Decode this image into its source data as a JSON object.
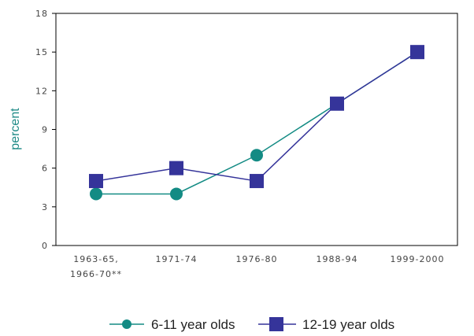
{
  "chart_data": {
    "type": "line",
    "title": "",
    "xlabel": "",
    "ylabel": "percent",
    "ylim": [
      0,
      18
    ],
    "yticks": [
      0,
      3,
      6,
      9,
      12,
      15,
      18
    ],
    "categories": [
      [
        "1963-65,",
        "1966-70**"
      ],
      [
        "1971-74"
      ],
      [
        "1976-80"
      ],
      [
        "1988-94"
      ],
      [
        "1999-2000"
      ]
    ],
    "series": [
      {
        "name": "6-11 year olds",
        "values": [
          4,
          4,
          7,
          11,
          15
        ],
        "marker": "circle",
        "color": "#138b84"
      },
      {
        "name": "12-19 year olds",
        "values": [
          5,
          6,
          5,
          11,
          15
        ],
        "marker": "square",
        "color": "#35349a"
      }
    ],
    "grid": false,
    "legend": "bottom-center"
  }
}
